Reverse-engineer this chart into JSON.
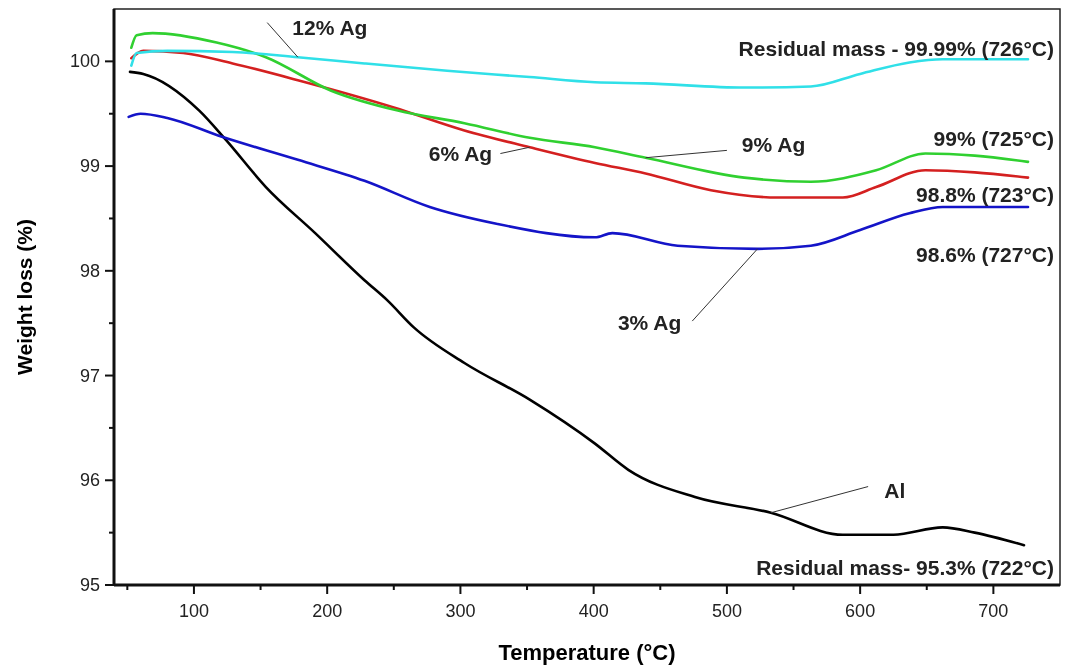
{
  "chart_data": {
    "type": "line",
    "xlabel": "Temperature (°C)",
    "ylabel": "Weight loss (%)",
    "xlim": [
      40,
      750
    ],
    "ylim": [
      95,
      100.5
    ],
    "xticks": [
      {
        "value": 50,
        "label": null
      },
      100,
      {
        "value": 150,
        "label": null
      },
      200,
      {
        "value": 250,
        "label": null
      },
      300,
      {
        "value": 350,
        "label": null
      },
      400,
      {
        "value": 450,
        "label": null
      },
      500,
      {
        "value": 550,
        "label": null
      },
      600,
      {
        "value": 650,
        "label": null
      },
      700
    ],
    "yticks": [
      95,
      {
        "value": 95.5,
        "label": null
      },
      96,
      {
        "value": 96.5,
        "label": null
      },
      97,
      {
        "value": 97.5,
        "label": null
      },
      98,
      {
        "value": 98.5,
        "label": null
      },
      99,
      {
        "value": 99.5,
        "label": null
      },
      100
    ],
    "grid": false,
    "marker": "none",
    "line_style": "solid",
    "series": [
      {
        "name": "Al",
        "color": "#000000",
        "x": [
          52,
          62,
          104,
          124,
          154,
          191,
          228,
          245,
          265,
          303,
          352,
          401,
          426,
          476,
          533,
          587,
          625,
          662,
          686,
          723
        ],
        "values": [
          99.9,
          99.88,
          99.53,
          99.25,
          98.8,
          98.36,
          97.91,
          97.72,
          97.46,
          97.12,
          96.77,
          96.35,
          96.1,
          95.84,
          95.69,
          95.48,
          95.48,
          95.55,
          95.5,
          95.38
        ]
      },
      {
        "name": "3% Ag",
        "color": "#1414c8",
        "x": [
          51,
          60,
          80,
          121,
          178,
          228,
          277,
          327,
          401,
          414,
          463,
          523,
          563,
          600,
          637,
          662,
          726
        ],
        "values": [
          99.47,
          99.5,
          99.46,
          99.28,
          99.06,
          98.86,
          98.61,
          98.45,
          98.32,
          98.36,
          98.24,
          98.21,
          98.24,
          98.39,
          98.55,
          98.61,
          98.61
        ]
      },
      {
        "name": "6% Ag",
        "color": "#d42020",
        "x": [
          53,
          62,
          92,
          129,
          178,
          250,
          303,
          352,
          401,
          439,
          488,
          538,
          587,
          612,
          649,
          686,
          726
        ],
        "values": [
          100.03,
          100.1,
          100.08,
          99.98,
          99.82,
          99.56,
          99.34,
          99.18,
          99.03,
          98.93,
          98.77,
          98.7,
          98.7,
          98.8,
          98.96,
          98.94,
          98.89
        ]
      },
      {
        "name": "9% Ag",
        "color": "#30d030",
        "x": [
          53,
          57,
          69,
          117,
          154,
          203,
          253,
          303,
          352,
          401,
          439,
          513,
          563,
          612,
          649,
          686,
          726
        ],
        "values": [
          100.13,
          100.25,
          100.27,
          100.18,
          100.04,
          99.72,
          99.53,
          99.41,
          99.27,
          99.18,
          99.08,
          98.89,
          98.85,
          98.96,
          99.12,
          99.1,
          99.04
        ]
      },
      {
        "name": "12% Ag",
        "color": "#30e0e8",
        "x": [
          53,
          57,
          80,
          129,
          178,
          228,
          290,
          352,
          401,
          439,
          513,
          563,
          600,
          637,
          662,
          726
        ],
        "values": [
          99.96,
          100.08,
          100.1,
          100.09,
          100.04,
          99.98,
          99.91,
          99.85,
          99.8,
          99.79,
          99.75,
          99.76,
          99.88,
          99.99,
          100.02,
          100.02
        ]
      }
    ],
    "annotations": [
      "Residual mass- 95.3% (722°C)",
      "98.6% (727°C)",
      "98.8% (723°C)",
      "99% (725°C)",
      "Residual mass - 99.99% (726°C)"
    ]
  }
}
